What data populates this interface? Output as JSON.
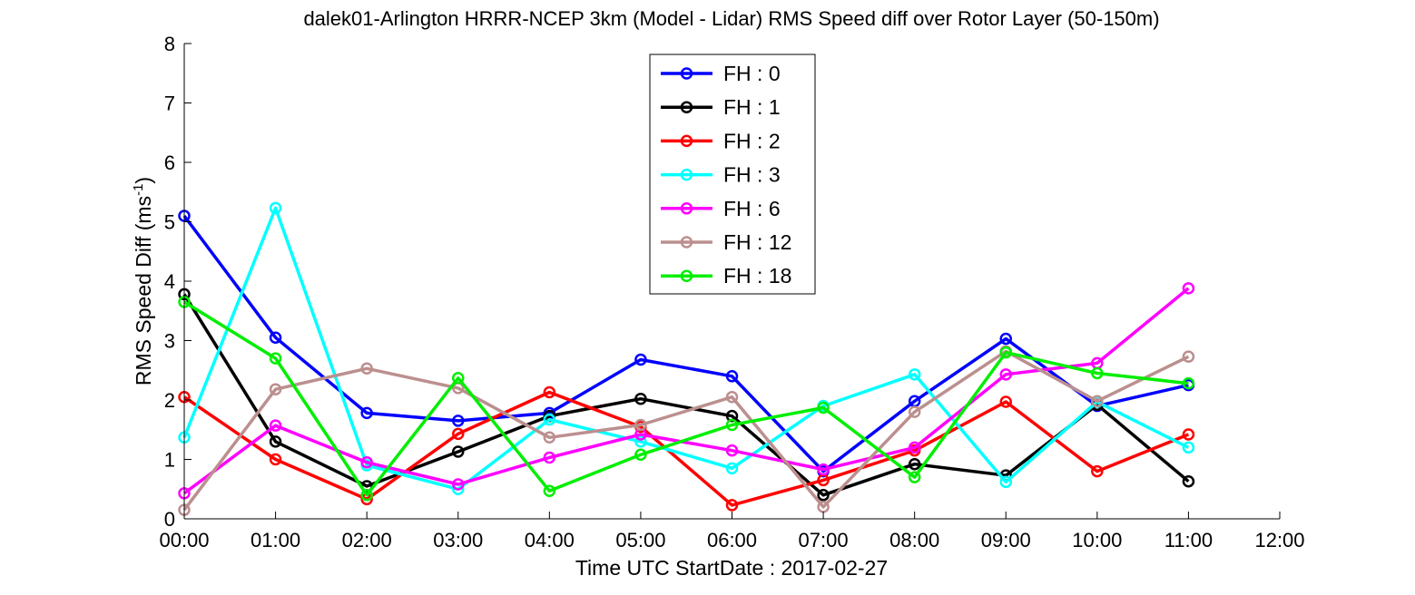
{
  "chart_data": {
    "type": "line",
    "title": "dalek01-Arlington HRRR-NCEP 3km (Model - Lidar) RMS Speed diff over Rotor Layer (50-150m)",
    "xlabel": "Time UTC    StartDate : 2017-02-27",
    "ylabel_main": "RMS Speed Diff (ms",
    "ylabel_sup": "-1",
    "ylabel_end": ")",
    "xlim": [
      0,
      12
    ],
    "ylim": [
      0,
      8
    ],
    "x_ticks": [
      "00:00",
      "01:00",
      "02:00",
      "03:00",
      "04:00",
      "05:00",
      "06:00",
      "07:00",
      "08:00",
      "09:00",
      "10:00",
      "11:00",
      "12:00"
    ],
    "y_ticks": [
      "0",
      "1",
      "2",
      "3",
      "4",
      "5",
      "6",
      "7",
      "8"
    ],
    "legend_position": "top-center",
    "grid": false,
    "x": [
      0,
      1,
      2,
      3,
      4,
      5,
      6,
      7,
      8,
      9,
      10,
      11
    ],
    "series": [
      {
        "name": "FH : 0",
        "color": "#0000ff",
        "values": [
          5.1,
          3.05,
          1.78,
          1.65,
          1.78,
          2.68,
          2.4,
          0.8,
          1.98,
          3.03,
          1.9,
          2.25
        ]
      },
      {
        "name": "FH : 1",
        "color": "#000000",
        "values": [
          3.78,
          1.3,
          0.55,
          1.13,
          1.73,
          2.02,
          1.73,
          0.4,
          0.92,
          0.73,
          1.92,
          0.63
        ]
      },
      {
        "name": "FH : 2",
        "color": "#ff0000",
        "values": [
          2.05,
          1.0,
          0.33,
          1.43,
          2.13,
          1.55,
          0.23,
          0.65,
          1.15,
          1.97,
          0.8,
          1.42
        ]
      },
      {
        "name": "FH : 3",
        "color": "#00ffff",
        "values": [
          1.37,
          5.23,
          0.9,
          0.5,
          1.67,
          1.3,
          0.85,
          1.9,
          2.43,
          0.62,
          1.97,
          1.2
        ]
      },
      {
        "name": "FH : 6",
        "color": "#ff00ff",
        "values": [
          0.43,
          1.57,
          0.95,
          0.58,
          1.03,
          1.42,
          1.15,
          0.83,
          1.2,
          2.43,
          2.62,
          3.88
        ]
      },
      {
        "name": "FH : 12",
        "color": "#bc8f8f",
        "values": [
          0.15,
          2.18,
          2.53,
          2.2,
          1.37,
          1.58,
          2.05,
          0.2,
          1.8,
          2.82,
          1.98,
          2.73
        ]
      },
      {
        "name": "FH : 18",
        "color": "#00ee00",
        "values": [
          3.65,
          2.7,
          0.4,
          2.37,
          0.47,
          1.08,
          1.58,
          1.87,
          0.7,
          2.8,
          2.45,
          2.28
        ]
      }
    ]
  }
}
